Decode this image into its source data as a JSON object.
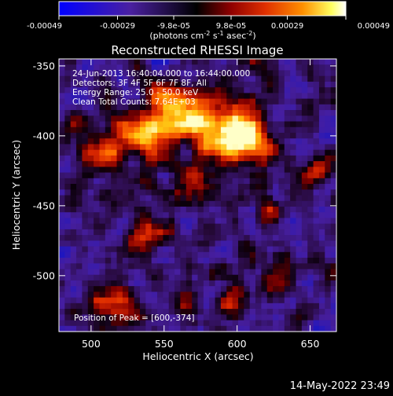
{
  "chart_data": {
    "type": "heatmap",
    "title": "Reconstructed RHESSI Image",
    "xlabel": "Heliocentric X (arcsec)",
    "ylabel": "Heliocentric Y (arcsec)",
    "xlim": [
      478,
      668
    ],
    "ylim": [
      -540,
      -345
    ],
    "xticks": [
      500,
      550,
      600,
      650
    ],
    "yticks": [
      -350,
      -400,
      -450,
      -500
    ],
    "colorbar": {
      "min": -0.00049,
      "max": 0.00049,
      "ticks": [
        "-0.00049",
        "-0.00029",
        "-9.8e-05",
        "9.8e-05",
        "0.00029",
        "0.00049"
      ],
      "tick_values": [
        -0.00049,
        -0.00029,
        -9.8e-05,
        9.8e-05,
        0.00029,
        0.00049
      ],
      "units_base": "(photons cm",
      "units_sup1": "-2",
      "units_mid": " s",
      "units_sup2": "-1",
      "units_mid2": " asec",
      "units_sup3": "-2",
      "units_end": ")",
      "colormap": [
        "#0000ff",
        "#3a1aa0",
        "#5a2a88",
        "#000000",
        "#8a0000",
        "#d02000",
        "#ff6000",
        "#ffb000",
        "#ffff80",
        "#ffffff"
      ]
    },
    "annotations": [
      "24-Jun-2013 16:40:04.000 to 16:44:00.000",
      "Detectors: 3F 4F 5F 6F 7F 8F, All",
      "Energy Range: 25.0 - 50.0 keV",
      "Clean    Total Counts: 7.64E+03"
    ],
    "peak_text": "Position of Peak = [600,-374]",
    "peak": [
      600,
      -374
    ]
  },
  "footer_date": "14-May-2022 23:49"
}
